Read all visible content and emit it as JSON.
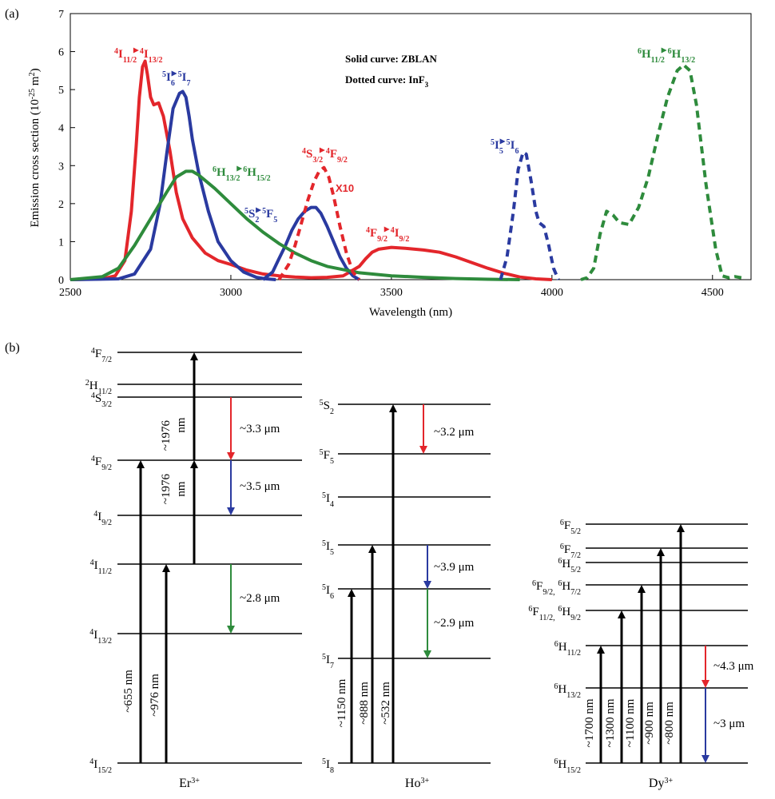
{
  "panel_a": {
    "label": "(a)",
    "note_solid": "Solid curve: ZBLAN",
    "note_dotted": "Dotted curve: InF",
    "note_dotted_sub": "3",
    "scale_note": "X10"
  },
  "panel_b": {
    "label": "(b)",
    "er": {
      "ion": "Er",
      "ion_sup": "3+",
      "levels": [
        {
          "sup": "4",
          "base": "F",
          "sub": "7/2"
        },
        {
          "sup": "2",
          "base": "H",
          "sub": "11/2"
        },
        {
          "sup": "4",
          "base": "S",
          "sub": "3/2"
        },
        {
          "sup": "4",
          "base": "F",
          "sub": "9/2"
        },
        {
          "sup": "4",
          "base": "I",
          "sub": "9/2"
        },
        {
          "sup": "4",
          "base": "I",
          "sub": "11/2"
        },
        {
          "sup": "4",
          "base": "I",
          "sub": "13/2"
        },
        {
          "sup": "4",
          "base": "I",
          "sub": "15/2"
        }
      ],
      "pumps": [
        "~655 nm",
        "~976 nm",
        "~1976 nm",
        "~1976 nm"
      ],
      "pump_value_1976": "~1976",
      "pump_unit_1976": "nm",
      "emissions": [
        "~3.3 μm",
        "~3.5 μm",
        "~2.8 μm"
      ]
    },
    "ho": {
      "ion": "Ho",
      "ion_sup": "3+",
      "levels": [
        {
          "sup": "5",
          "base": "S",
          "sub": "2"
        },
        {
          "sup": "5",
          "base": "F",
          "sub": "5"
        },
        {
          "sup": "5",
          "base": "I",
          "sub": "4"
        },
        {
          "sup": "5",
          "base": "I",
          "sub": "5"
        },
        {
          "sup": "5",
          "base": "I",
          "sub": "6"
        },
        {
          "sup": "5",
          "base": "I",
          "sub": "7"
        },
        {
          "sup": "5",
          "base": "I",
          "sub": "8"
        }
      ],
      "pumps": [
        "~1150 nm",
        "~888 nm",
        "~532 nm"
      ],
      "emissions": [
        "~3.2 μm",
        "~3.9 μm",
        "~2.9 μm"
      ]
    },
    "dy": {
      "ion": "Dy",
      "ion_sup": "3+",
      "levels": [
        {
          "sup": "6",
          "base": "F",
          "sub": "5/2"
        },
        {
          "sup": "6",
          "base": "F",
          "sub": "7/2"
        },
        {
          "sup": "6",
          "base": "H",
          "sub": "5/2"
        },
        {
          "sup": "6",
          "base": "F",
          "sub": "9/2,",
          "sup2": "6",
          "base2": "H",
          "sub2": "7/2"
        },
        {
          "sup": "6",
          "base": "F",
          "sub": "11/2,",
          "sup2": "6",
          "base2": "H",
          "sub2": "9/2"
        },
        {
          "sup": "6",
          "base": "H",
          "sub": "11/2"
        },
        {
          "sup": "6",
          "base": "H",
          "sub": "13/2"
        },
        {
          "sup": "6",
          "base": "H",
          "sub": "15/2"
        }
      ],
      "pumps": [
        "~1700 nm",
        "~1300 nm",
        "~1100 nm",
        "~900 nm",
        "~800 nm"
      ],
      "emissions": [
        "~4.3 μm",
        "~3 μm"
      ]
    }
  },
  "colors": {
    "er": "#e3262b",
    "ho": "#2a3aa0",
    "dy": "#2e8b3c",
    "pump": "#000000",
    "em_red": "#e3262b",
    "em_blue": "#2a3aa0",
    "em_green": "#2e8b3c"
  },
  "chart_data": {
    "type": "line",
    "xlabel": "Wavelength (nm)",
    "ylabel": "Emission cross section (10",
    "ylabel_sup": "-25",
    "ylabel_tail": " m",
    "ylabel_sup2": "2",
    "ylabel_end": ")",
    "xlim": [
      2500,
      4620
    ],
    "ylim": [
      0,
      7
    ],
    "xticks": [
      2500,
      3000,
      3500,
      4000,
      4500
    ],
    "yticks": [
      0,
      1,
      2,
      3,
      4,
      5,
      6,
      7
    ],
    "grid": false,
    "series": [
      {
        "name": "Er ZBLAN",
        "color": "#e3262b",
        "dashed": false,
        "label": {
          "sup1": "4",
          "base1": "I",
          "sub1": "11/2",
          "sup2": "4",
          "base2": "I",
          "sub2": "13/2"
        },
        "x": [
          2500,
          2600,
          2640,
          2670,
          2690,
          2705,
          2715,
          2725,
          2733,
          2740,
          2750,
          2760,
          2775,
          2790,
          2810,
          2830,
          2850,
          2880,
          2920,
          2960,
          3000,
          3050,
          3100,
          3150,
          3200,
          3250,
          3300,
          3350,
          3400,
          3420,
          3440,
          3460,
          3500,
          3550,
          3600,
          3650,
          3700,
          3750,
          3800,
          3850,
          3900,
          3950,
          4000
        ],
        "y": [
          0,
          0.02,
          0.1,
          0.5,
          1.8,
          3.5,
          4.8,
          5.6,
          5.75,
          5.4,
          4.8,
          4.6,
          4.65,
          4.3,
          3.4,
          2.3,
          1.6,
          1.1,
          0.7,
          0.5,
          0.4,
          0.25,
          0.15,
          0.1,
          0.07,
          0.05,
          0.06,
          0.1,
          0.35,
          0.55,
          0.72,
          0.8,
          0.85,
          0.82,
          0.78,
          0.72,
          0.6,
          0.45,
          0.3,
          0.17,
          0.07,
          0.02,
          0
        ]
      },
      {
        "name": "Ho ZBLAN",
        "color": "#2a3aa0",
        "dashed": false,
        "label": {
          "sup1": "5",
          "base1": "I",
          "sub1": "6",
          "sup2": "5",
          "base2": "I",
          "sub2": "7"
        },
        "x": [
          2500,
          2650,
          2700,
          2750,
          2780,
          2800,
          2820,
          2840,
          2850,
          2860,
          2870,
          2880,
          2900,
          2930,
          2960,
          3000,
          3040,
          3080,
          3110,
          3140
        ],
        "y": [
          0,
          0.02,
          0.15,
          0.8,
          2.0,
          3.3,
          4.5,
          4.9,
          4.95,
          4.8,
          4.3,
          3.7,
          2.8,
          1.8,
          1.0,
          0.5,
          0.2,
          0.06,
          0.02,
          0
        ]
      },
      {
        "name": "Ho ZBLAN 3.9",
        "color": "#2a3aa0",
        "dashed": false,
        "label": {
          "sup1": "5",
          "base1": "S",
          "sub1": "2",
          "sup2": "5",
          "base2": "F",
          "sub2": "5"
        },
        "x": [
          3100,
          3130,
          3150,
          3170,
          3190,
          3210,
          3230,
          3250,
          3265,
          3280,
          3300,
          3320,
          3340,
          3360,
          3380,
          3400
        ],
        "y": [
          0,
          0.2,
          0.55,
          0.9,
          1.3,
          1.6,
          1.8,
          1.9,
          1.9,
          1.75,
          1.4,
          1.0,
          0.6,
          0.3,
          0.1,
          0
        ]
      },
      {
        "name": "Dy ZBLAN",
        "color": "#2e8b3c",
        "dashed": false,
        "label": {
          "sup1": "6",
          "base1": "H",
          "sub1": "13/2",
          "sup2": "6",
          "base2": "H",
          "sub2": "15/2"
        },
        "x": [
          2500,
          2600,
          2650,
          2700,
          2750,
          2800,
          2830,
          2860,
          2880,
          2900,
          2950,
          3000,
          3050,
          3100,
          3150,
          3200,
          3250,
          3300,
          3400,
          3500,
          3600,
          3700,
          3800,
          3900
        ],
        "y": [
          0,
          0.08,
          0.3,
          0.9,
          1.6,
          2.3,
          2.7,
          2.85,
          2.85,
          2.75,
          2.4,
          2.0,
          1.6,
          1.25,
          0.95,
          0.7,
          0.5,
          0.35,
          0.18,
          0.1,
          0.06,
          0.03,
          0.01,
          0
        ]
      },
      {
        "name": "Er InF3 (x10)",
        "color": "#e3262b",
        "dashed": true,
        "label": {
          "sup1": "4",
          "base1": "S",
          "sub1": "3/2",
          "sup2": "4",
          "base2": "F",
          "sub2": "9/2"
        },
        "x": [
          3150,
          3180,
          3200,
          3220,
          3240,
          3260,
          3275,
          3290,
          3305,
          3320,
          3340,
          3360,
          3380,
          3400
        ],
        "y": [
          0,
          0.4,
          0.9,
          1.5,
          2.1,
          2.6,
          2.85,
          2.95,
          2.7,
          2.2,
          1.4,
          0.7,
          0.2,
          0
        ]
      },
      {
        "name": "Er ZBLAN 3.5",
        "color": "#e3262b",
        "dashed": false,
        "label": {
          "sup1": "4",
          "base1": "F",
          "sub1": "9/2",
          "sup2": "4",
          "base2": "I",
          "sub2": "9/2"
        },
        "x": [],
        "y": []
      },
      {
        "name": "Ho InF3",
        "color": "#2a3aa0",
        "dashed": true,
        "label": {
          "sup1": "5",
          "base1": "I",
          "sub1": "5",
          "sup2": "5",
          "base2": "I",
          "sub2": "6"
        },
        "x": [
          3840,
          3860,
          3880,
          3895,
          3910,
          3920,
          3935,
          3950,
          3960,
          3975,
          3990,
          4005,
          4020
        ],
        "y": [
          0,
          0.6,
          1.8,
          2.9,
          3.35,
          3.3,
          2.6,
          1.8,
          1.5,
          1.4,
          0.9,
          0.3,
          0
        ]
      },
      {
        "name": "Dy InF3",
        "color": "#2e8b3c",
        "dashed": true,
        "label": {
          "sup1": "6",
          "base1": "H",
          "sub1": "11/2",
          "sup2": "6",
          "base2": "H",
          "sub2": "13/2"
        },
        "x": [
          4090,
          4110,
          4130,
          4150,
          4170,
          4190,
          4210,
          4240,
          4270,
          4300,
          4330,
          4360,
          4390,
          4410,
          4430,
          4450,
          4480,
          4510,
          4530,
          4550,
          4570,
          4590
        ],
        "y": [
          0,
          0.05,
          0.3,
          1.2,
          1.8,
          1.7,
          1.5,
          1.45,
          1.9,
          2.7,
          3.8,
          4.8,
          5.5,
          5.65,
          5.5,
          4.6,
          2.5,
          0.8,
          0.1,
          0.05,
          0.08,
          0.05
        ]
      }
    ]
  }
}
